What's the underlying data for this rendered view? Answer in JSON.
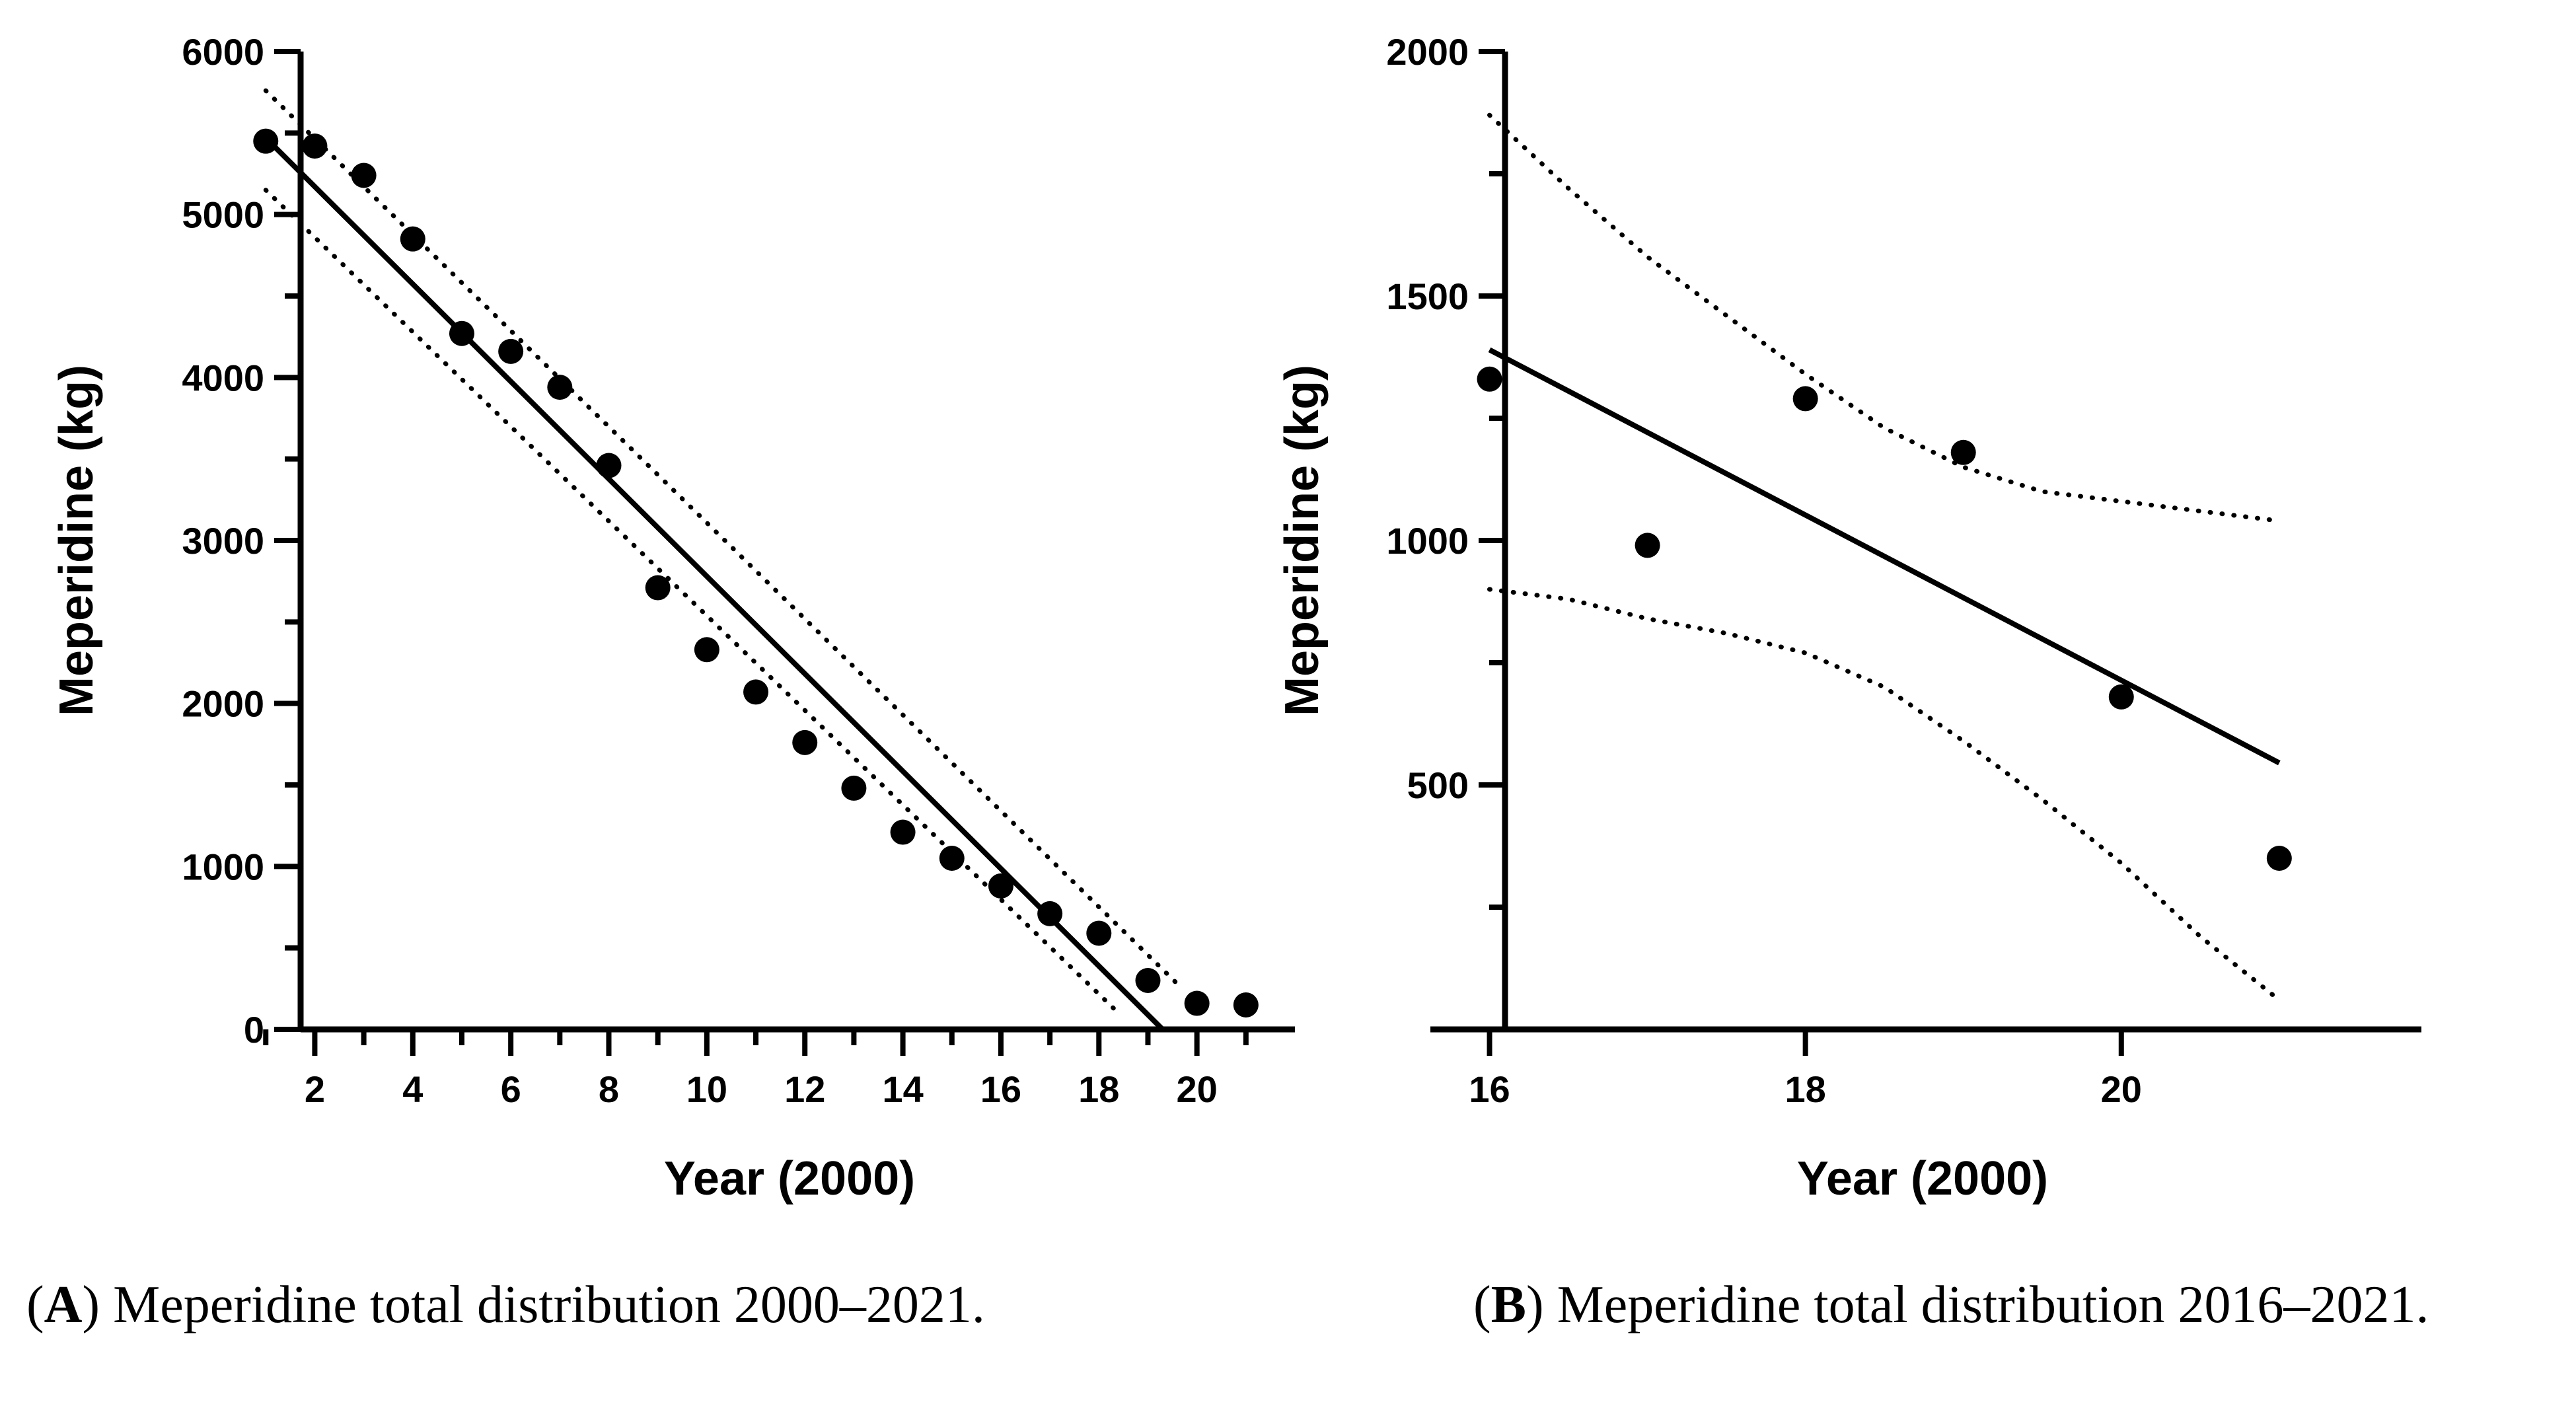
{
  "chart_data": [
    {
      "panel": "A",
      "type": "scatter",
      "xlabel": "Year (2000)",
      "ylabel": "Meperidine (kg)",
      "xlim": [
        0.7,
        22
      ],
      "ylim": [
        0,
        6000
      ],
      "x_ticks": [
        2,
        4,
        6,
        8,
        10,
        12,
        14,
        16,
        18,
        20
      ],
      "x_minor_ticks": [
        1,
        3,
        5,
        7,
        9,
        11,
        13,
        15,
        17,
        19,
        21
      ],
      "y_ticks": [
        0,
        1000,
        2000,
        3000,
        4000,
        5000,
        6000
      ],
      "y_minor_ticks": [
        500,
        1500,
        2500,
        3500,
        4500,
        5500
      ],
      "points": {
        "x": [
          1,
          2,
          3,
          4,
          5,
          6,
          7,
          8,
          9,
          10,
          11,
          12,
          13,
          14,
          15,
          16,
          17,
          18,
          19,
          20,
          21
        ],
        "y": [
          5450,
          5420,
          5240,
          4850,
          4270,
          4160,
          3940,
          3460,
          2710,
          2330,
          2070,
          1760,
          1480,
          1210,
          1050,
          880,
          710,
          590,
          300,
          160,
          150
        ]
      },
      "fit_line": {
        "x": [
          1,
          19.3
        ],
        "y": [
          5470,
          0
        ]
      },
      "ci_upper": {
        "x": [
          1,
          19.7
        ],
        "y": [
          5760,
          250
        ]
      },
      "ci_lower": {
        "x": [
          1,
          18.4
        ],
        "y": [
          5150,
          100
        ]
      },
      "caption_label": "A",
      "caption_text": "Meperidine total distribution 2000–2021."
    },
    {
      "panel": "B",
      "type": "scatter",
      "xlabel": "Year (2000)",
      "ylabel": "Meperidine (kg)",
      "xlim": [
        15.5,
        21.9
      ],
      "ylim": [
        0,
        2000
      ],
      "x_ticks": [
        16,
        18,
        20
      ],
      "y_ticks": [
        500,
        1000,
        1500,
        2000
      ],
      "y_minor_ticks": [
        250,
        750,
        1250,
        1750
      ],
      "points": {
        "x": [
          16,
          17,
          18,
          19,
          20,
          21
        ],
        "y": [
          1330,
          990,
          1290,
          1180,
          680,
          350
        ]
      },
      "fit_line": {
        "x": [
          16,
          21
        ],
        "y": [
          1390,
          545
        ]
      },
      "ci_upper": {
        "x": [
          16,
          16.5,
          17,
          17.5,
          18,
          18.5,
          19,
          19.5,
          20,
          20.5,
          21
        ],
        "y": [
          1870,
          1720,
          1580,
          1460,
          1340,
          1230,
          1150,
          1100,
          1080,
          1060,
          1040
        ]
      },
      "ci_lower": {
        "x": [
          16,
          16.5,
          17,
          17.5,
          18,
          18.5,
          19,
          19.5,
          20,
          20.5,
          21
        ],
        "y": [
          900,
          880,
          840,
          810,
          770,
          700,
          590,
          470,
          340,
          190,
          60
        ]
      },
      "caption_label": "B",
      "caption_text": "Meperidine total distribution 2016–2021."
    }
  ]
}
